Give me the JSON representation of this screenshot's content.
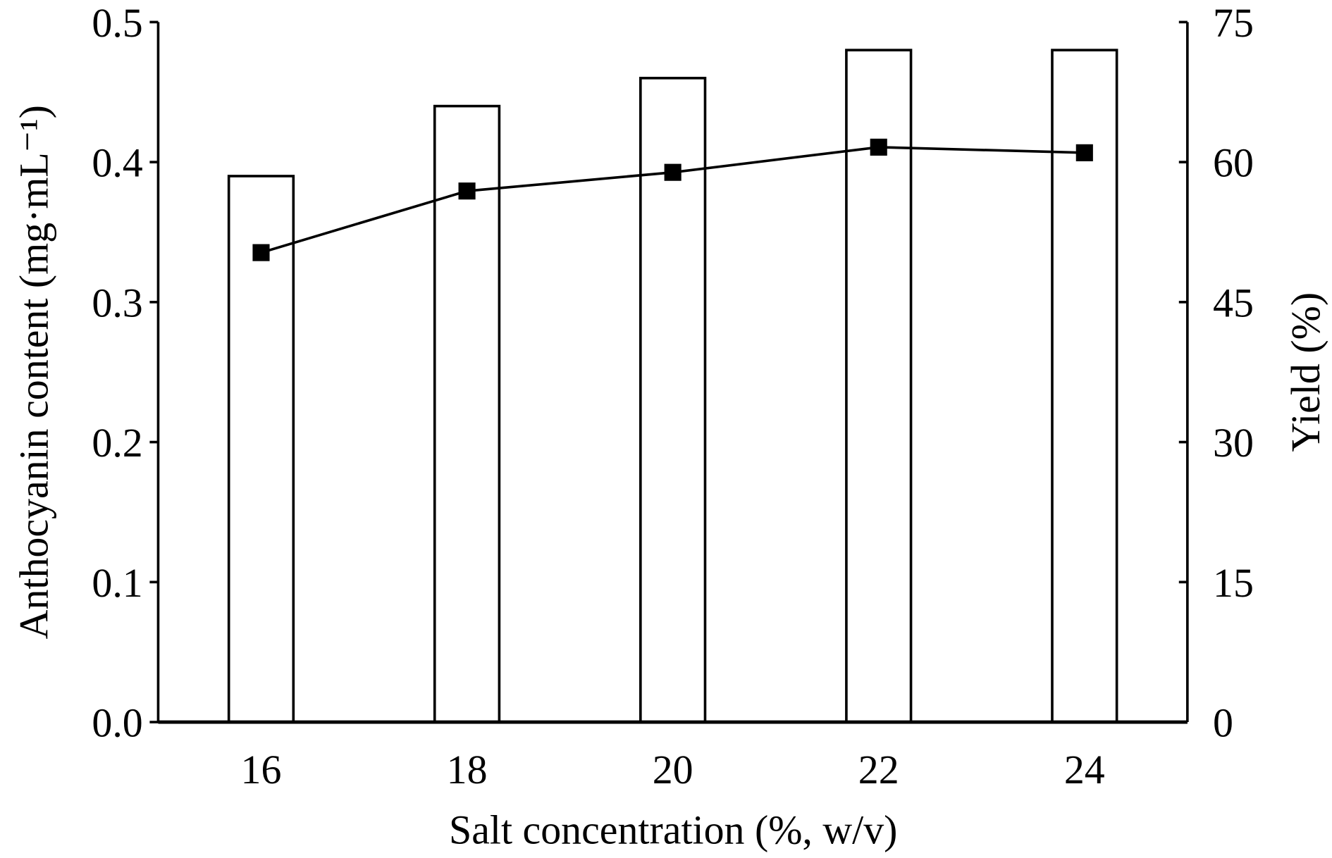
{
  "chart_data": {
    "type": "bar+line",
    "xlabel": "Salt concentration (%, w/v)",
    "ylabel": "Anthocyanin content (mg·mL⁻¹)",
    "y2label": "Yield (%)",
    "categories": [
      "16",
      "18",
      "20",
      "22",
      "24"
    ],
    "ylim": [
      0,
      0.5
    ],
    "y2lim": [
      0,
      75
    ],
    "yticks": [
      "0.0",
      "0.1",
      "0.2",
      "0.3",
      "0.4",
      "0.5"
    ],
    "y2ticks": [
      "0",
      "15",
      "30",
      "45",
      "60",
      "75"
    ],
    "grid": false,
    "series": [
      {
        "type": "bar",
        "axis": "left",
        "values": [
          0.39,
          0.44,
          0.46,
          0.48,
          0.48
        ],
        "fill": "#ffffff",
        "stroke": "#000000"
      },
      {
        "type": "line",
        "axis": "right",
        "marker": "square",
        "values": [
          50.3,
          56.9,
          58.9,
          61.6,
          61.0
        ],
        "color": "#000000"
      }
    ]
  }
}
